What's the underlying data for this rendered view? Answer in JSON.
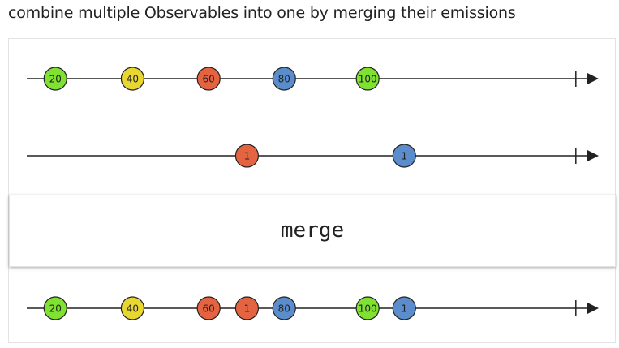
{
  "title": "combine multiple Observables into one by merging their emissions",
  "operator": "merge",
  "colors": {
    "green": "#7fe130",
    "yellow": "#e8d631",
    "red": "#e46341",
    "blue": "#5b8ccb",
    "line": "#222222",
    "text": "#222222"
  },
  "timelines": [
    {
      "name": "input-1",
      "marbles": [
        {
          "label": "20",
          "color": "green",
          "t": 0.05
        },
        {
          "label": "40",
          "color": "yellow",
          "t": 0.185
        },
        {
          "label": "60",
          "color": "red",
          "t": 0.318
        },
        {
          "label": "80",
          "color": "blue",
          "t": 0.45
        },
        {
          "label": "100",
          "color": "green",
          "t": 0.596
        }
      ],
      "complete_t": 0.96
    },
    {
      "name": "input-2",
      "marbles": [
        {
          "label": "1",
          "color": "red",
          "t": 0.385
        },
        {
          "label": "1",
          "color": "blue",
          "t": 0.66
        }
      ],
      "complete_t": 0.96
    },
    {
      "name": "output",
      "marbles": [
        {
          "label": "20",
          "color": "green",
          "t": 0.05
        },
        {
          "label": "40",
          "color": "yellow",
          "t": 0.185
        },
        {
          "label": "60",
          "color": "red",
          "t": 0.318
        },
        {
          "label": "1",
          "color": "red",
          "t": 0.385
        },
        {
          "label": "80",
          "color": "blue",
          "t": 0.45
        },
        {
          "label": "100",
          "color": "green",
          "t": 0.596
        },
        {
          "label": "1",
          "color": "blue",
          "t": 0.66
        }
      ],
      "complete_t": 0.96
    }
  ]
}
